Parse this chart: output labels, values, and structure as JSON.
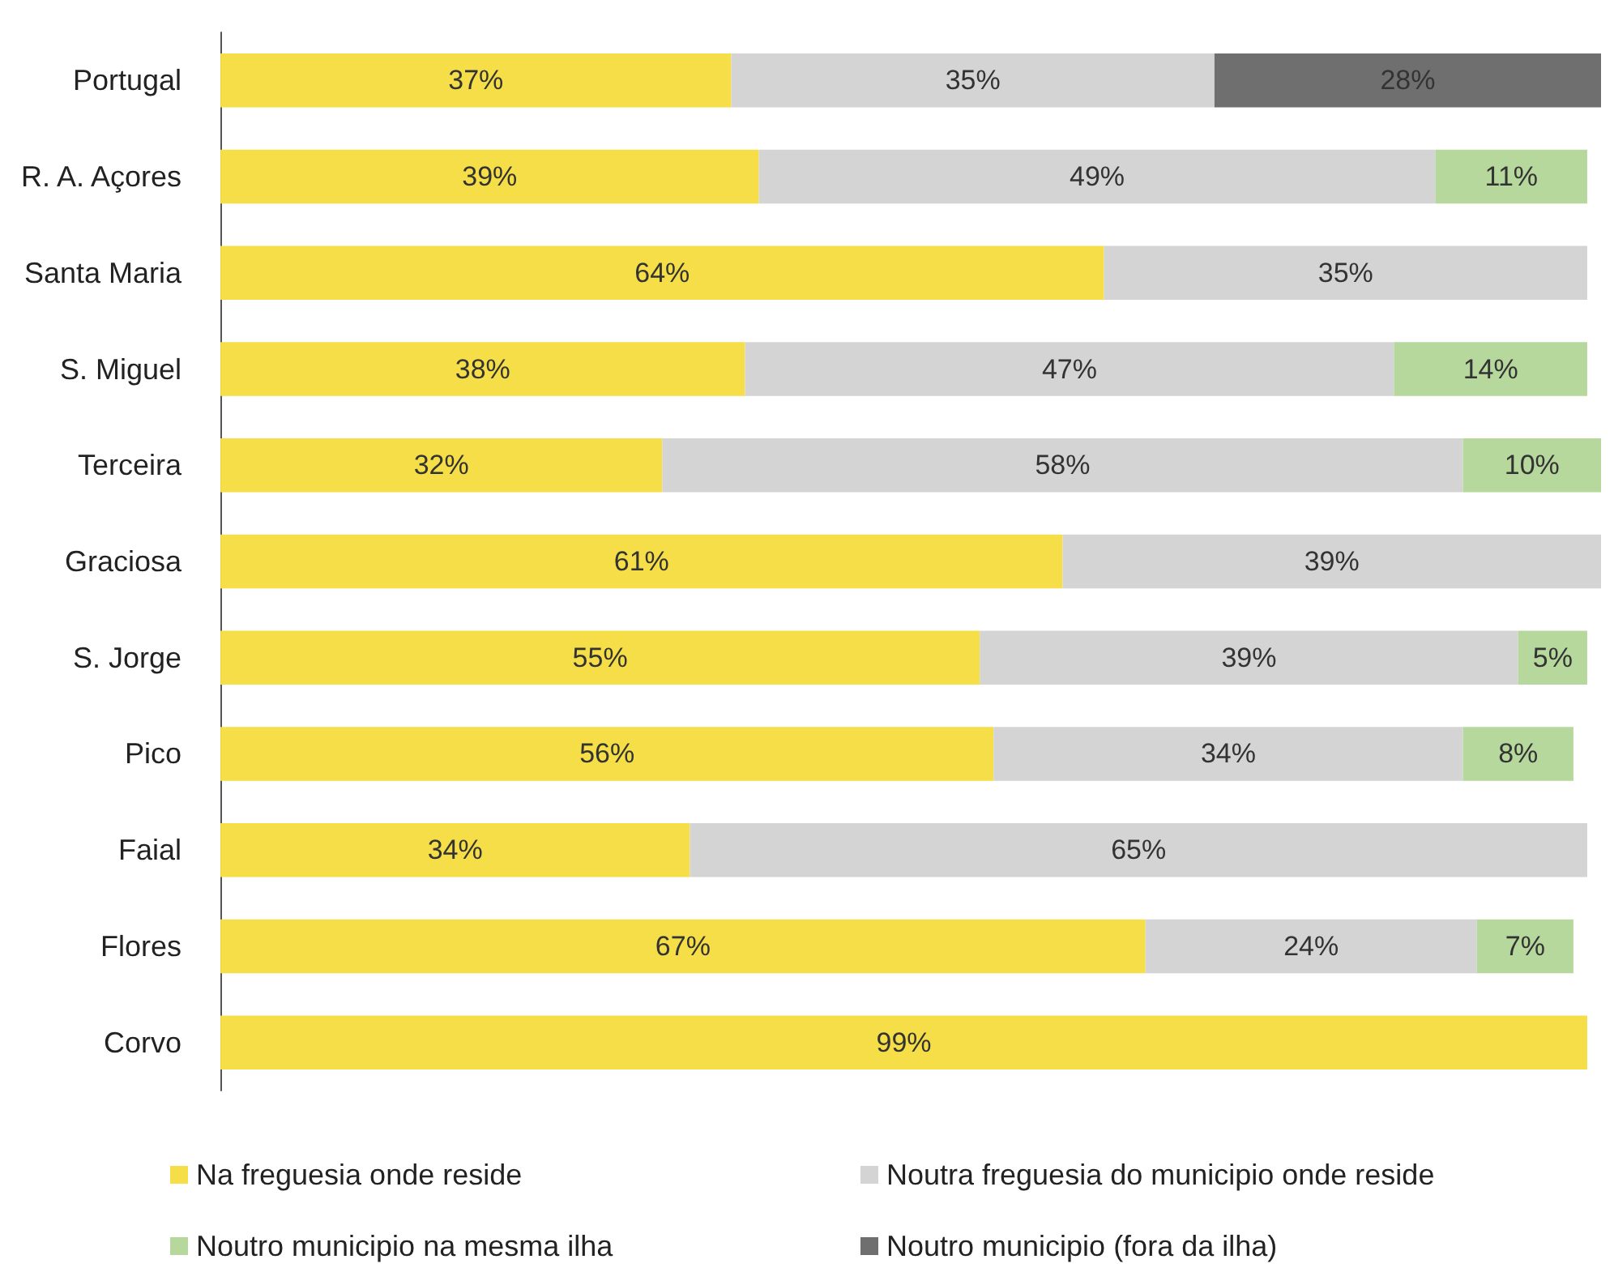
{
  "chart_data": {
    "type": "bar",
    "orientation": "horizontal",
    "stacked": true,
    "legend": "bottom",
    "grid": false,
    "categories": [
      "Portugal",
      "R. A. Açores",
      "Santa Maria",
      "S. Miguel",
      "Terceira",
      "Graciosa",
      "S. Jorge",
      "Pico",
      "Faial",
      "Flores",
      "Corvo"
    ],
    "series": [
      {
        "name": "Na freguesia onde reside",
        "color": "#f5de47",
        "values": [
          37,
          39,
          64,
          38,
          32,
          61,
          55,
          56,
          34,
          67,
          99
        ],
        "value_labels": [
          "37%",
          "39%",
          "64%",
          "38%",
          "32%",
          "61%",
          "55%",
          "56%",
          "34%",
          "67%",
          "99%"
        ]
      },
      {
        "name": "Noutra freguesia do municipio onde reside",
        "color": "#d4d4d4",
        "values": [
          35,
          49,
          35,
          47,
          58,
          39,
          39,
          34,
          65,
          24,
          null
        ],
        "value_labels": [
          "35%",
          "49%",
          "35%",
          "47%",
          "58%",
          "39%",
          "39%",
          "34%",
          "65%",
          "24%",
          null
        ]
      },
      {
        "name": "Noutro municipio na mesma ilha",
        "color": "#b6d89c",
        "values": [
          null,
          11,
          null,
          14,
          10,
          null,
          5,
          8,
          null,
          7,
          null
        ],
        "value_labels": [
          null,
          "11%",
          null,
          "14%",
          "10%",
          null,
          "5%",
          "8%",
          null,
          "7%",
          null
        ]
      },
      {
        "name": "Noutro municipio (fora da ilha)",
        "color": "#6f6f6f",
        "values": [
          28,
          null,
          null,
          null,
          null,
          null,
          null,
          null,
          null,
          null,
          null
        ],
        "value_labels": [
          "28%",
          null,
          null,
          null,
          null,
          null,
          null,
          null,
          null,
          null,
          null
        ]
      }
    ]
  }
}
